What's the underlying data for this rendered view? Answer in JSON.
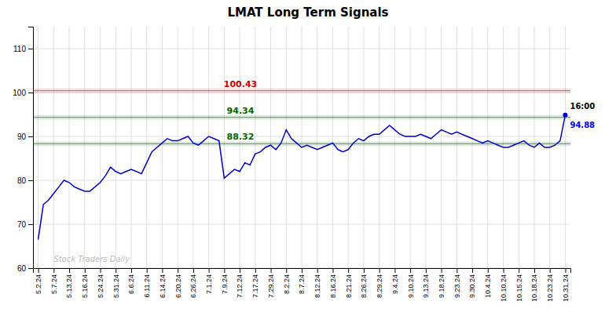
{
  "chart_data": {
    "type": "line",
    "title": "LMAT Long Term Signals",
    "color": "#0000cc",
    "grid": true,
    "ylim": [
      60,
      115
    ],
    "yticks": [
      60,
      70,
      80,
      90,
      100,
      110
    ],
    "categories": [
      "5.2.24",
      null,
      null,
      "5.7.24",
      null,
      null,
      "5.13.24",
      null,
      null,
      "5.16.24",
      null,
      null,
      "5.24.24",
      null,
      null,
      "5.31.24",
      null,
      null,
      "6.6.24",
      null,
      null,
      "6.11.24",
      null,
      null,
      "6.14.24",
      null,
      null,
      "6.20.24",
      null,
      null,
      "6.26.24",
      null,
      null,
      "7.1.24",
      null,
      null,
      "7.9.24",
      null,
      null,
      "7.12.24",
      null,
      null,
      "7.17.24",
      null,
      null,
      "7.29.24",
      null,
      null,
      "8.2.24",
      null,
      null,
      "8.7.24",
      null,
      null,
      "8.12.24",
      null,
      null,
      "8.16.24",
      null,
      null,
      "8.21.24",
      null,
      null,
      "8.26.24",
      null,
      null,
      "8.29.24",
      null,
      null,
      "9.4.24",
      null,
      null,
      "9.10.24",
      null,
      null,
      "9.13.24",
      null,
      null,
      "9.18.24",
      null,
      null,
      "9.23.24",
      null,
      null,
      "9.30.24",
      null,
      null,
      "10.4.24",
      null,
      null,
      "10.10.24",
      null,
      null,
      "10.15.24",
      null,
      null,
      "10.18.24",
      null,
      null,
      "10.23.24",
      null,
      null,
      "10.31.24"
    ],
    "values": [
      66.5,
      74.5,
      75.5,
      77.0,
      78.5,
      80.0,
      79.5,
      78.5,
      78.0,
      77.5,
      77.5,
      78.5,
      79.5,
      81.0,
      83.0,
      82.0,
      81.5,
      82.0,
      82.5,
      82.0,
      81.5,
      84.0,
      86.5,
      87.5,
      88.5,
      89.5,
      89.0,
      89.0,
      89.5,
      90.0,
      88.5,
      88.0,
      89.0,
      90.0,
      89.5,
      89.0,
      80.5,
      81.5,
      82.5,
      82.0,
      84.0,
      83.5,
      86.0,
      86.5,
      87.5,
      88.0,
      87.0,
      88.5,
      91.5,
      89.5,
      88.5,
      87.5,
      88.0,
      87.5,
      87.0,
      87.5,
      88.0,
      88.5,
      87.0,
      86.5,
      87.0,
      88.5,
      89.5,
      89.0,
      90.0,
      90.5,
      90.5,
      91.5,
      92.5,
      91.5,
      90.5,
      90.0,
      90.0,
      90.0,
      90.5,
      90.0,
      89.5,
      90.5,
      91.5,
      91.0,
      90.5,
      91.0,
      90.5,
      90.0,
      89.5,
      89.0,
      88.5,
      89.0,
      88.5,
      88.0,
      87.5,
      87.5,
      88.0,
      88.5,
      89.0,
      88.0,
      87.5,
      88.5,
      87.5,
      87.5,
      88.0,
      89.0,
      94.88
    ],
    "reference_lines": [
      {
        "value": 100.43,
        "label": "100.43",
        "color": "#cc0000"
      },
      {
        "value": 94.34,
        "label": "94.34",
        "color": "#006600"
      },
      {
        "value": 88.32,
        "label": "88.32",
        "color": "#006600"
      }
    ],
    "last_point_labels": [
      {
        "text": "16:00",
        "color": "#000000"
      },
      {
        "text": "94.88",
        "color": "#0000ff"
      }
    ],
    "watermark": {
      "text": "Stock Traders Daily",
      "color": "#bbbbbb"
    }
  }
}
